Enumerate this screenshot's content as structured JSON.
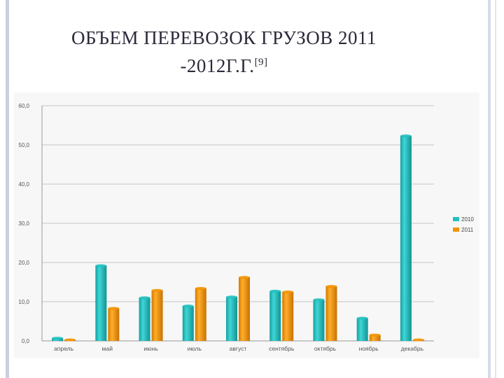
{
  "slide": {
    "title_line1": "ОБЪЕМ ПЕРЕВОЗОК ГРУЗОВ 2011",
    "title_line2": "-2012Г.Г.",
    "title_ref": "[9]"
  },
  "chart_data": {
    "type": "bar",
    "categories": [
      "апрель",
      "май",
      "июнь",
      "июль",
      "август",
      "сентябрь",
      "октябрь",
      "ноябрь",
      "декабрь"
    ],
    "series": [
      {
        "name": "2010",
        "color": "#22bfbf",
        "values": [
          0.7,
          19.2,
          11.0,
          8.9,
          11.2,
          12.7,
          10.5,
          5.8,
          52.3
        ]
      },
      {
        "name": "2011",
        "color": "#f29400",
        "values": [
          0.0,
          8.3,
          12.9,
          13.4,
          16.2,
          12.5,
          13.9,
          1.5,
          0.0
        ]
      }
    ],
    "y_ticks": [
      "0,0",
      "10,0",
      "20,0",
      "30,0",
      "40,0",
      "50,0",
      "60,0"
    ],
    "ylim": [
      0,
      60
    ],
    "grid": true,
    "legend": "right"
  }
}
